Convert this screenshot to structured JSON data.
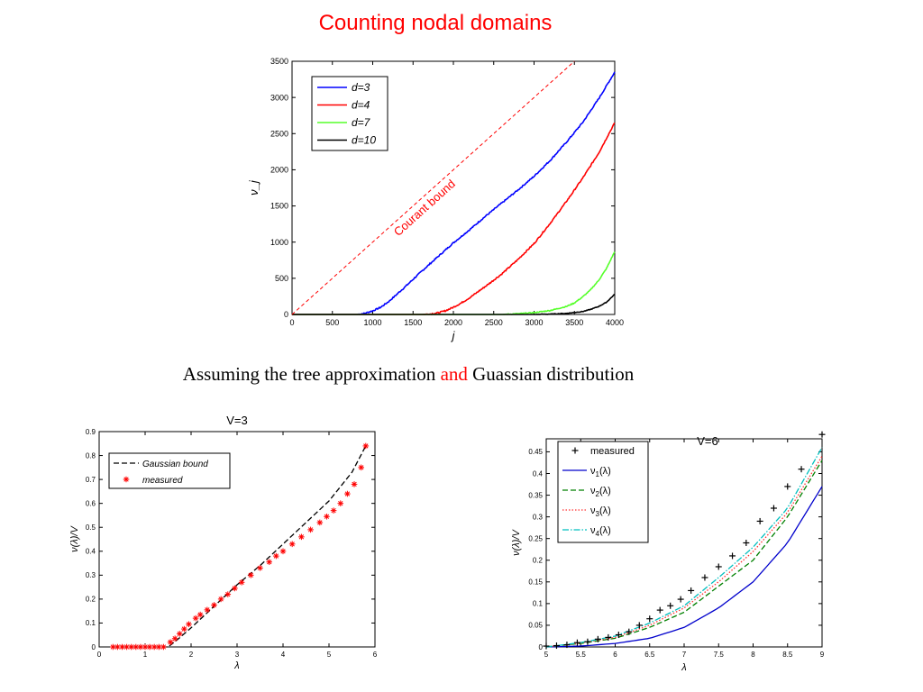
{
  "slide": {
    "title": "Counting nodal domains",
    "caption": {
      "part1": "Assuming the tree approximation ",
      "part2": "and",
      "part3": " Guassian distribution"
    }
  },
  "colors": {
    "title": "#ff0000",
    "d3": "#0000ff",
    "d4": "#ff0000",
    "d7": "#55ff2a",
    "d10": "#000000",
    "nu1": "#0000cc",
    "nu2": "#008000",
    "nu3": "#ff3030",
    "nu4": "#00bfbf"
  },
  "chart_data": [
    {
      "type": "line",
      "xlabel": "j",
      "ylabel": "ν_j",
      "xlim": [
        0,
        4000
      ],
      "ylim": [
        0,
        3500
      ],
      "xticks": [
        "0",
        "500",
        "1000",
        "1500",
        "2000",
        "2500",
        "3000",
        "3500",
        "4000"
      ],
      "yticks": [
        "0",
        "500",
        "1000",
        "1500",
        "2000",
        "2500",
        "3000",
        "3500"
      ],
      "legend": "top-left",
      "annotation": "Courant bound",
      "series": [
        {
          "name": "d=3",
          "x": [
            0,
            800,
            900,
            1000,
            1100,
            1200,
            1400,
            1600,
            1800,
            2000,
            2200,
            2400,
            2600,
            2800,
            3000,
            3200,
            3400,
            3600,
            3800,
            4000
          ],
          "y": [
            0,
            0,
            15,
            50,
            100,
            180,
            380,
            590,
            790,
            990,
            1170,
            1360,
            1540,
            1720,
            1910,
            2130,
            2380,
            2650,
            2980,
            3350
          ]
        },
        {
          "name": "d=4",
          "x": [
            0,
            1600,
            1700,
            1800,
            1900,
            2000,
            2100,
            2200,
            2400,
            2600,
            2800,
            3000,
            3200,
            3400,
            3600,
            3800,
            4000
          ],
          "y": [
            0,
            0,
            5,
            20,
            50,
            100,
            160,
            230,
            390,
            560,
            760,
            980,
            1260,
            1560,
            1880,
            2230,
            2650
          ]
        },
        {
          "name": "d=7",
          "x": [
            0,
            2600,
            2800,
            3000,
            3200,
            3400,
            3500,
            3600,
            3700,
            3800,
            3900,
            4000
          ],
          "y": [
            0,
            0,
            10,
            25,
            55,
            110,
            160,
            240,
            340,
            470,
            640,
            870
          ]
        },
        {
          "name": "d=10",
          "x": [
            0,
            3000,
            3200,
            3400,
            3600,
            3700,
            3800,
            3900,
            4000
          ],
          "y": [
            0,
            0,
            5,
            15,
            40,
            70,
            110,
            170,
            280
          ]
        },
        {
          "name": "Courant bound",
          "x": [
            0,
            3500
          ],
          "y": [
            0,
            3500
          ]
        }
      ]
    },
    {
      "type": "line",
      "title": "V=3",
      "xlabel": "λ",
      "ylabel": "ν(λ)/V",
      "xlim": [
        0,
        6
      ],
      "ylim": [
        0,
        0.9
      ],
      "xticks": [
        "0",
        "1",
        "2",
        "3",
        "4",
        "5",
        "6"
      ],
      "yticks": [
        "0",
        "0.1",
        "0.2",
        "0.3",
        "0.4",
        "0.5",
        "0.6",
        "0.7",
        "0.8",
        "0.9"
      ],
      "legend": "top-left",
      "series": [
        {
          "name": "Gaussian bound",
          "x": [
            0.3,
            1.5,
            1.7,
            2.0,
            2.5,
            3.0,
            3.5,
            4.0,
            4.5,
            5.0,
            5.5,
            5.8
          ],
          "y": [
            0,
            0,
            0.03,
            0.08,
            0.17,
            0.26,
            0.34,
            0.43,
            0.52,
            0.61,
            0.73,
            0.84
          ]
        },
        {
          "name": "measured",
          "x": [
            0.3,
            0.4,
            0.5,
            0.6,
            0.7,
            0.8,
            0.9,
            1.0,
            1.1,
            1.2,
            1.3,
            1.4,
            1.55,
            1.65,
            1.75,
            1.85,
            1.95,
            2.1,
            2.2,
            2.35,
            2.5,
            2.65,
            2.8,
            2.95,
            3.1,
            3.3,
            3.5,
            3.7,
            3.85,
            4.0,
            4.2,
            4.4,
            4.6,
            4.8,
            4.95,
            5.1,
            5.25,
            5.4,
            5.55,
            5.7,
            5.8
          ],
          "y": [
            0,
            0,
            0,
            0,
            0,
            0,
            0,
            0,
            0,
            0,
            0,
            0,
            0.02,
            0.035,
            0.055,
            0.075,
            0.095,
            0.12,
            0.135,
            0.155,
            0.175,
            0.2,
            0.22,
            0.245,
            0.27,
            0.3,
            0.33,
            0.355,
            0.38,
            0.4,
            0.43,
            0.46,
            0.49,
            0.52,
            0.545,
            0.57,
            0.6,
            0.64,
            0.68,
            0.75,
            0.84
          ]
        }
      ]
    },
    {
      "type": "line",
      "title": "V=6",
      "xlabel": "λ",
      "ylabel": "ν(λ)/V",
      "xlim": [
        5,
        9
      ],
      "ylim": [
        0,
        0.48
      ],
      "xticks": [
        "5",
        "5.5",
        "6",
        "6.5",
        "7",
        "7.5",
        "8",
        "8.5",
        "9"
      ],
      "yticks": [
        "0",
        "0.05",
        "0.1",
        "0.15",
        "0.2",
        "0.25",
        "0.3",
        "0.35",
        "0.4",
        "0.45"
      ],
      "legend": "top-left",
      "series": [
        {
          "name": "measured",
          "x": [
            5.0,
            5.15,
            5.3,
            5.45,
            5.6,
            5.75,
            5.9,
            6.05,
            6.2,
            6.35,
            6.5,
            6.65,
            6.8,
            6.95,
            7.1,
            7.3,
            7.5,
            7.7,
            7.9,
            8.1,
            8.3,
            8.5,
            8.7,
            9.0
          ],
          "y": [
            0.002,
            0.003,
            0.005,
            0.01,
            0.012,
            0.018,
            0.022,
            0.028,
            0.035,
            0.05,
            0.065,
            0.085,
            0.095,
            0.11,
            0.13,
            0.16,
            0.185,
            0.21,
            0.24,
            0.29,
            0.32,
            0.37,
            0.41,
            0.49
          ]
        },
        {
          "name": "ν_1(λ)",
          "x": [
            5.0,
            5.5,
            6.0,
            6.5,
            7.0,
            7.5,
            8.0,
            8.5,
            9.0
          ],
          "y": [
            0,
            0.002,
            0.008,
            0.02,
            0.045,
            0.09,
            0.15,
            0.24,
            0.37
          ]
        },
        {
          "name": "ν_2(λ)",
          "x": [
            5.0,
            5.5,
            6.0,
            6.5,
            7.0,
            7.5,
            8.0,
            8.5,
            9.0
          ],
          "y": [
            0,
            0.008,
            0.02,
            0.045,
            0.08,
            0.14,
            0.2,
            0.3,
            0.43
          ]
        },
        {
          "name": "ν_3(λ)",
          "x": [
            5.0,
            5.5,
            6.0,
            6.5,
            7.0,
            7.5,
            8.0,
            8.5,
            9.0
          ],
          "y": [
            0,
            0.009,
            0.022,
            0.05,
            0.09,
            0.15,
            0.22,
            0.31,
            0.44
          ]
        },
        {
          "name": "ν_4(λ)",
          "x": [
            5.0,
            5.5,
            6.0,
            6.5,
            7.0,
            7.5,
            8.0,
            8.5,
            9.0
          ],
          "y": [
            0,
            0.01,
            0.025,
            0.055,
            0.095,
            0.16,
            0.23,
            0.32,
            0.46
          ]
        }
      ]
    }
  ]
}
